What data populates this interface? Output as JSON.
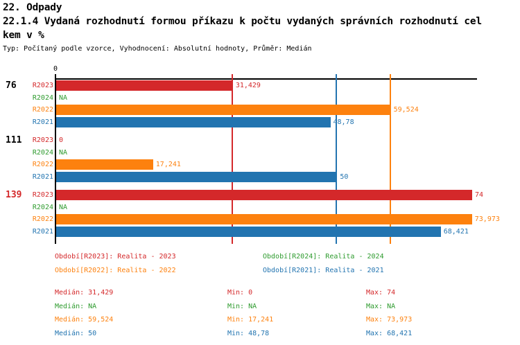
{
  "header": {
    "line1": "22. Odpady",
    "line2": "22.1.4 Vydaná rozhodnutí formou příkazu k počtu vydaných správních rozhodnutí cel",
    "line3": "kem v %",
    "meta": "Typ: Počítaný podle vzorce, Vyhodnocení: Absolutní hodnoty, Průměr: Medián"
  },
  "colors": {
    "R2023": "#d4282a",
    "R2024": "#2e9b2e",
    "R2022": "#fd810e",
    "R2021": "#2274b0",
    "axis": "#000000"
  },
  "chart_data": {
    "type": "bar",
    "orientation": "horizontal",
    "title": "22.1.4 Vydaná rozhodnutí formou příkazu k počtu vydaných správních rozhodnutí celkem v %",
    "xlim": [
      0,
      74
    ],
    "x_axis_tick": "0",
    "grid": "median-lines",
    "series_order": [
      "R2023",
      "R2024",
      "R2022",
      "R2021"
    ],
    "categories": [
      "76",
      "111",
      "139"
    ],
    "groups": [
      {
        "label": "76",
        "label_color": "#000000",
        "bars": [
          {
            "series": "R2023",
            "value": 31.429,
            "display": "31,429"
          },
          {
            "series": "R2024",
            "value": null,
            "display": "NA"
          },
          {
            "series": "R2022",
            "value": 59.524,
            "display": "59,524"
          },
          {
            "series": "R2021",
            "value": 48.78,
            "display": "48,78"
          }
        ]
      },
      {
        "label": "111",
        "label_color": "#000000",
        "bars": [
          {
            "series": "R2023",
            "value": 0,
            "display": "0"
          },
          {
            "series": "R2024",
            "value": null,
            "display": "NA"
          },
          {
            "series": "R2022",
            "value": 17.241,
            "display": "17,241"
          },
          {
            "series": "R2021",
            "value": 50,
            "display": "50"
          }
        ]
      },
      {
        "label": "139",
        "label_color": "#d4282a",
        "bars": [
          {
            "series": "R2023",
            "value": 74,
            "display": "74"
          },
          {
            "series": "R2024",
            "value": null,
            "display": "NA"
          },
          {
            "series": "R2022",
            "value": 73.973,
            "display": "73,973"
          },
          {
            "series": "R2021",
            "value": 68.421,
            "display": "68,421"
          }
        ]
      }
    ],
    "median_gridlines": [
      {
        "series": "R2023",
        "value": 31.429
      },
      {
        "series": "R2021",
        "value": 50
      },
      {
        "series": "R2022",
        "value": 59.524
      }
    ]
  },
  "legend": {
    "items": [
      {
        "series": "R2023",
        "text": "Období[R2023]: Realita - 2023"
      },
      {
        "series": "R2024",
        "text": "Období[R2024]: Realita - 2024"
      },
      {
        "series": "R2022",
        "text": "Období[R2022]: Realita - 2022"
      },
      {
        "series": "R2021",
        "text": "Období[R2021]: Realita - 2021"
      }
    ]
  },
  "stats": {
    "rows": [
      {
        "series": "R2023",
        "median": "Medián: 31,429",
        "min": "Min: 0",
        "max": "Max: 74"
      },
      {
        "series": "R2024",
        "median": "Medián: NA",
        "min": "Min: NA",
        "max": "Max: NA"
      },
      {
        "series": "R2022",
        "median": "Medián: 59,524",
        "min": "Min: 17,241",
        "max": "Max: 73,973"
      },
      {
        "series": "R2021",
        "median": "Medián: 50",
        "min": "Min: 48,78",
        "max": "Max: 68,421"
      }
    ]
  }
}
